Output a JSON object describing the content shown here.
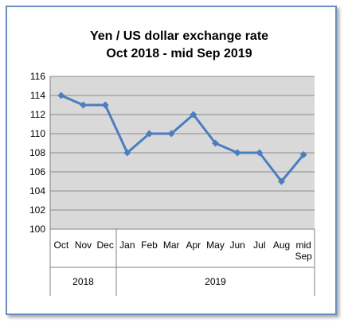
{
  "chart_data": {
    "type": "line",
    "title": "Yen / US dollar  exchange rate",
    "subtitle": "Oct 2018 -  mid Sep  2019",
    "categories": [
      "Oct",
      "Nov",
      "Dec",
      "Jan",
      "Feb",
      "Mar",
      "Apr",
      "May",
      "Jun",
      "Jul",
      "Aug",
      "mid Sep"
    ],
    "groups": [
      {
        "label": "2018",
        "span": 3
      },
      {
        "label": "2019",
        "span": 9
      }
    ],
    "series": [
      {
        "values": [
          114,
          113,
          113,
          108,
          110,
          110,
          112,
          109,
          108,
          108,
          105,
          107.8
        ]
      }
    ],
    "ylim": [
      100,
      116
    ],
    "yticks": [
      100,
      102,
      104,
      106,
      108,
      110,
      112,
      114,
      116
    ],
    "grid": true,
    "legend": "none",
    "colors": {
      "line": "#4a7ebf",
      "plot_bg": "#d9d9d9",
      "gridline": "#8c8c8c",
      "frame": "#6c8ebf"
    }
  }
}
